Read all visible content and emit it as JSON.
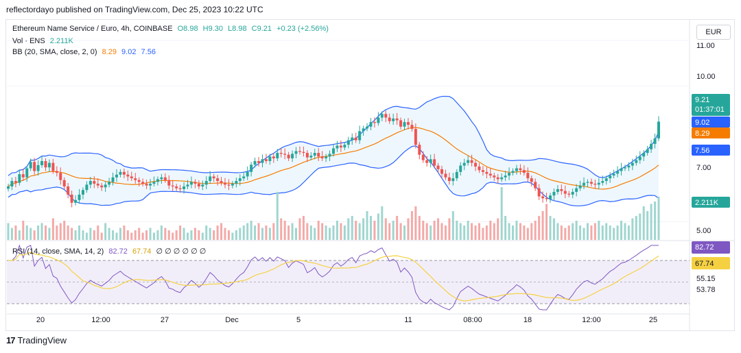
{
  "header": {
    "published": "reflectordayo published on TradingView.com, Dec 25, 2023 10:22 UTC",
    "currency": "EUR",
    "footer_brand": "TradingView",
    "footer_logo": "17"
  },
  "legend": {
    "title": "Ethereum Name Service / Euro, 4h, COINBASE",
    "open": "O8.98",
    "high": "H9.30",
    "low": "L8.98",
    "close": "C9.21",
    "change": "+0.23 (+2.56%)",
    "vol_label": "Vol · ENS",
    "vol_value": "2.211K",
    "bb_label": "BB (20, SMA, close, 2, 0)",
    "bb_basis": "8.29",
    "bb_upper": "9.02",
    "bb_lower": "7.56",
    "rsi_label": "RSI (14, close, SMA, 14, 2)",
    "rsi_value": "82.72",
    "rsi_ma": "67.74",
    "rsi_extra": "∅ ∅ ∅ ∅ ∅ ∅"
  },
  "colors": {
    "up": "#26a69a",
    "down": "#ef5350",
    "vol_up": "#9fd6cf",
    "vol_down": "#f4a9a7",
    "bb": "#2962ff",
    "bb_fill": "#e3f2fd",
    "basis": "#f57c00",
    "rsi": "#7e57c2",
    "rsi_ma": "#f5d142",
    "rsi_band": "#ede7f6",
    "grid": "#f0f3fa",
    "axis_text": "#131722"
  },
  "chart_data": {
    "type": "candlestick",
    "symbol": "ENS/EUR",
    "timeframe": "4h",
    "ylim": [
      6.6,
      11.35
    ],
    "price_ticks": [
      "11.00",
      "10.00",
      "7.00",
      "5.00"
    ],
    "volume_ticks": [
      "5.00"
    ],
    "rsi_ticks": [
      "55.15",
      "53.78"
    ],
    "x_ticks": [
      "20",
      "12:00",
      "27",
      "Dec",
      "5",
      "11",
      "08:00",
      "18",
      "12:00",
      "25"
    ],
    "candle_closes": [
      7.78,
      7.9,
      7.86,
      8.05,
      7.98,
      8.18,
      8.32,
      8.12,
      8.25,
      8.34,
      8.2,
      8.3,
      8.12,
      8.08,
      7.92,
      7.78,
      7.6,
      7.42,
      7.48,
      7.6,
      7.7,
      7.82,
      7.9,
      7.84,
      7.8,
      7.76,
      7.82,
      7.88,
      7.98,
      8.04,
      8.1,
      8.04,
      8.0,
      7.96,
      7.92,
      7.88,
      7.84,
      7.8,
      7.84,
      7.88,
      7.94,
      7.98,
      7.92,
      7.8,
      7.78,
      7.74,
      7.72,
      7.78,
      7.82,
      7.88,
      7.84,
      7.78,
      7.82,
      7.9,
      8.0,
      7.96,
      7.9,
      7.86,
      7.82,
      7.8,
      7.84,
      7.9,
      7.96,
      8.0,
      8.1,
      8.26,
      8.34,
      8.3,
      8.38,
      8.34,
      8.44,
      8.4,
      8.52,
      8.5,
      8.48,
      8.4,
      8.5,
      8.56,
      8.54,
      8.52,
      8.42,
      8.46,
      8.52,
      8.44,
      8.4,
      8.44,
      8.5,
      8.62,
      8.68,
      8.64,
      8.7,
      8.8,
      8.86,
      8.8,
      9.0,
      9.06,
      9.1,
      9.2,
      9.18,
      9.3,
      9.38,
      9.3,
      9.22,
      9.28,
      9.24,
      9.1,
      9.2,
      9.14,
      9.05,
      8.7,
      8.48,
      8.36,
      8.3,
      8.38,
      8.24,
      8.16,
      8.06,
      7.98,
      7.9,
      7.96,
      8.1,
      8.24,
      8.3,
      8.36,
      8.3,
      8.22,
      8.14,
      8.1,
      8.06,
      8.02,
      7.98,
      7.94,
      7.98,
      8.02,
      8.08,
      8.12,
      8.18,
      8.14,
      8.08,
      7.96,
      7.88,
      7.74,
      7.56,
      7.52,
      7.5,
      7.58,
      7.66,
      7.72,
      7.68,
      7.62,
      7.6,
      7.66,
      7.74,
      7.8,
      7.86,
      7.88,
      7.84,
      7.82,
      7.86,
      7.9,
      7.96,
      8.02,
      8.06,
      8.12,
      8.18,
      8.2,
      8.24,
      8.3,
      8.36,
      8.44,
      8.52,
      8.6,
      8.72,
      8.84,
      9.21
    ],
    "volume_ratios": [
      0.35,
      0.25,
      0.3,
      0.2,
      0.4,
      0.3,
      0.25,
      0.2,
      0.3,
      0.35,
      0.3,
      0.25,
      0.45,
      0.3,
      0.35,
      0.4,
      0.3,
      0.25,
      0.2,
      0.3,
      0.2,
      0.15,
      0.25,
      0.2,
      0.3,
      0.15,
      0.35,
      0.25,
      0.2,
      0.15,
      0.25,
      0.3,
      0.2,
      0.15,
      0.2,
      0.25,
      0.15,
      0.2,
      0.25,
      0.15,
      0.2,
      0.3,
      0.25,
      0.2,
      0.15,
      0.2,
      0.3,
      0.25,
      0.15,
      0.2,
      0.25,
      0.2,
      0.15,
      0.3,
      0.25,
      0.2,
      0.3,
      0.35,
      0.25,
      0.2,
      0.15,
      0.2,
      0.25,
      0.3,
      0.35,
      0.4,
      0.3,
      0.35,
      0.25,
      0.3,
      0.25,
      0.35,
      1.0,
      0.45,
      0.4,
      0.3,
      0.35,
      0.25,
      0.45,
      0.5,
      0.35,
      0.3,
      0.25,
      0.4,
      0.35,
      0.3,
      0.25,
      0.3,
      0.4,
      0.35,
      0.3,
      0.45,
      0.5,
      0.4,
      0.35,
      0.45,
      0.6,
      0.5,
      0.4,
      0.55,
      0.7,
      0.45,
      0.35,
      0.4,
      0.5,
      0.35,
      0.3,
      0.45,
      0.6,
      0.7,
      0.5,
      0.4,
      0.35,
      0.3,
      0.4,
      0.45,
      0.35,
      0.3,
      0.45,
      0.6,
      0.4,
      0.35,
      0.3,
      0.4,
      0.35,
      0.3,
      0.35,
      0.25,
      0.3,
      0.4,
      0.35,
      0.45,
      1.1,
      0.5,
      0.35,
      0.3,
      0.4,
      0.35,
      0.3,
      0.25,
      0.35,
      0.4,
      0.5,
      0.6,
      0.75,
      0.5,
      0.45,
      0.35,
      0.3,
      0.25,
      0.3,
      0.35,
      0.4,
      0.3,
      0.25,
      0.35,
      0.3,
      0.35,
      0.4,
      0.3,
      0.35,
      0.3,
      0.25,
      0.3,
      0.4,
      0.35,
      0.3,
      0.45,
      0.5,
      0.55,
      0.7,
      0.6,
      0.75,
      0.8,
      0.9
    ],
    "series": [
      {
        "name": "BB Upper",
        "last": 9.02
      },
      {
        "name": "BB Basis",
        "last": 8.29
      },
      {
        "name": "BB Lower",
        "last": 7.56
      },
      {
        "name": "RSI",
        "last": 82.72
      },
      {
        "name": "RSI MA",
        "last": 67.74
      }
    ],
    "last_price": "9.21",
    "countdown": "01:37:01",
    "last_volume": "2.211K",
    "rsi_last": "82.72",
    "rsi_ma_last": "67.74"
  }
}
